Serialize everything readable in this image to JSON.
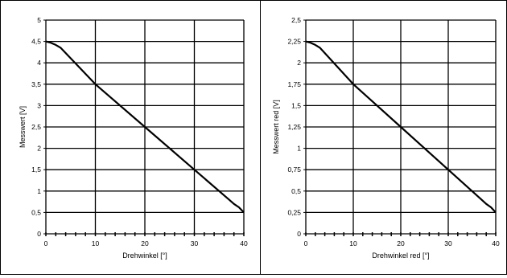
{
  "chart_data": [
    {
      "type": "line",
      "title": "",
      "xlabel": "Drehwinkel [°]",
      "ylabel": "Messwert [V]",
      "xlim": [
        0,
        40
      ],
      "ylim": [
        0,
        5
      ],
      "xticks": [
        "0",
        "10",
        "20",
        "30",
        "40"
      ],
      "yticks": [
        "0",
        "0,5",
        "1",
        "1,5",
        "2",
        "2,5",
        "3",
        "3,5",
        "4",
        "4,5",
        "5"
      ],
      "grid": true,
      "series": [
        {
          "x": [
            0,
            1,
            2,
            3,
            10,
            20,
            30,
            37,
            38,
            39,
            40
          ],
          "y": [
            4.5,
            4.47,
            4.42,
            4.35,
            3.5,
            2.5,
            1.5,
            0.8,
            0.7,
            0.62,
            0.5
          ]
        }
      ]
    },
    {
      "type": "line",
      "title": "",
      "xlabel": "Drehwinkel red [°]",
      "ylabel": "Messwert red [V]",
      "xlim": [
        0,
        40
      ],
      "ylim": [
        0,
        2.5
      ],
      "xticks": [
        "0",
        "10",
        "20",
        "30",
        "40"
      ],
      "yticks": [
        "0",
        "0,25",
        "0,5",
        "0,75",
        "1",
        "1,25",
        "1,5",
        "1,75",
        "2",
        "2,25",
        "2,5"
      ],
      "grid": true,
      "series": [
        {
          "x": [
            0,
            1,
            2,
            3,
            10,
            20,
            30,
            37,
            38,
            39,
            40
          ],
          "y": [
            2.25,
            2.235,
            2.21,
            2.175,
            1.75,
            1.25,
            0.75,
            0.4,
            0.35,
            0.31,
            0.25
          ]
        }
      ]
    }
  ]
}
